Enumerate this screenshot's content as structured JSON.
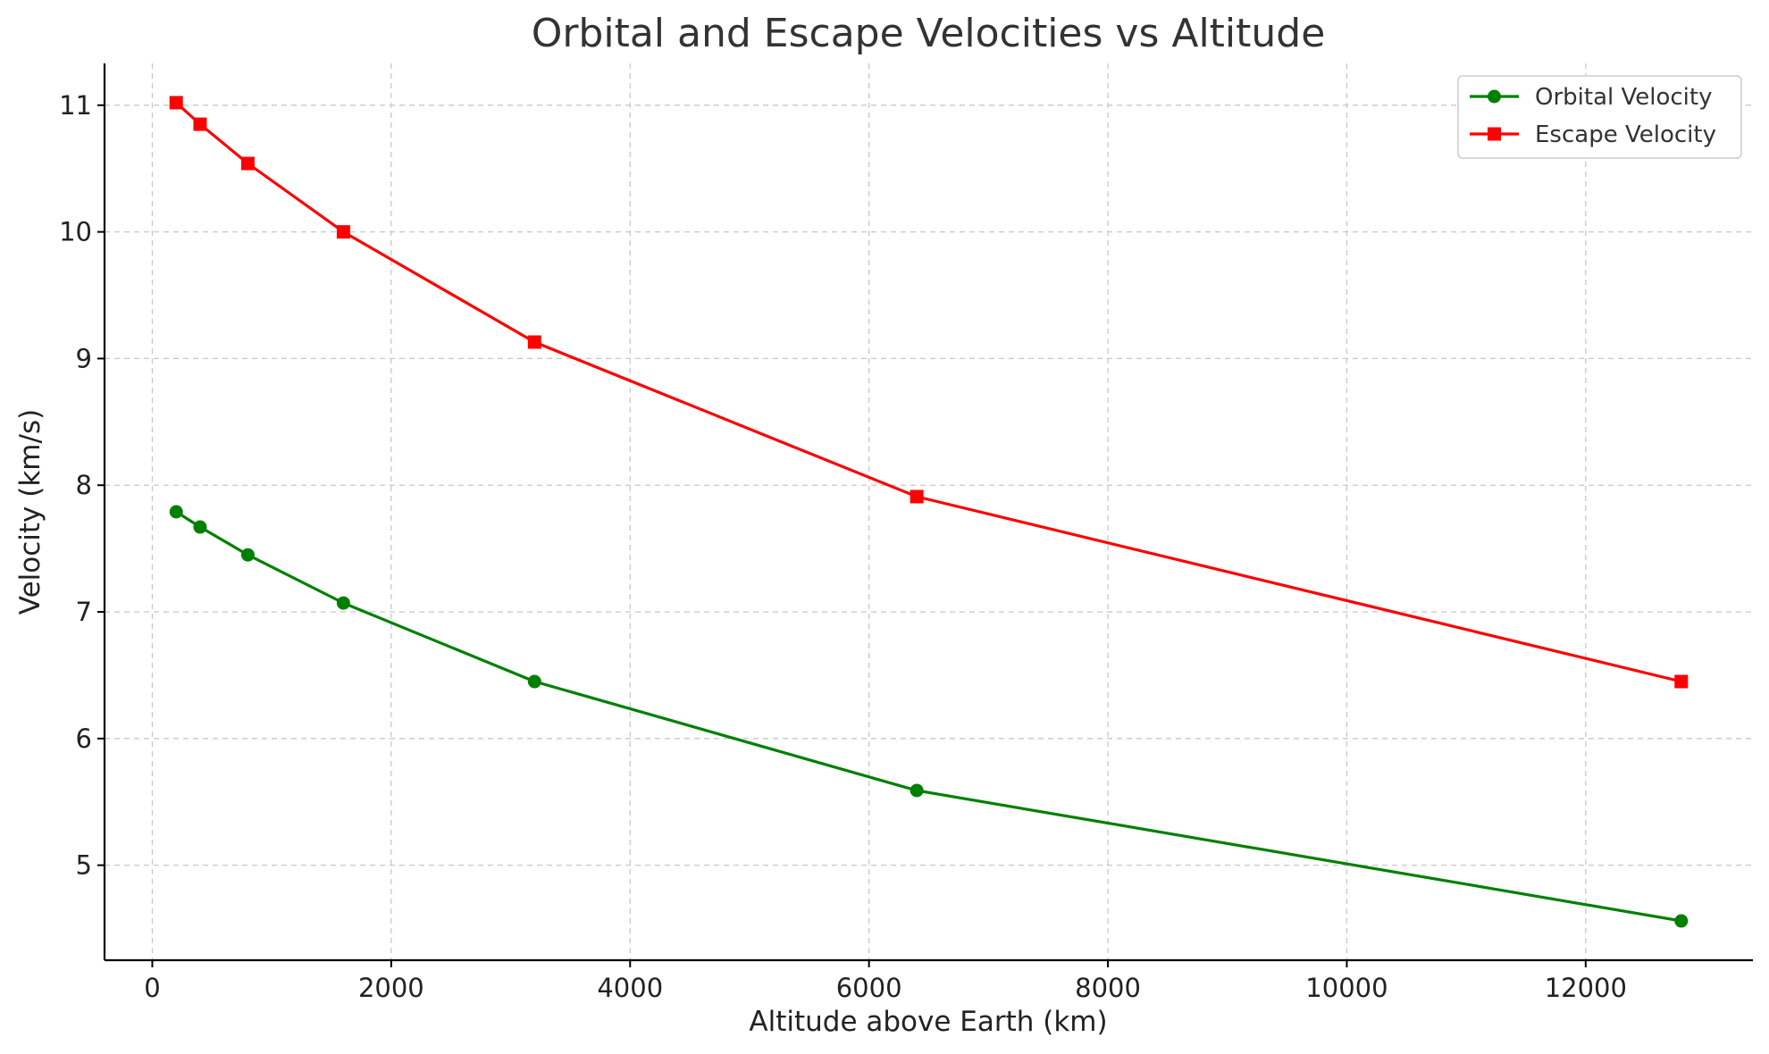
{
  "chart_data": {
    "type": "line",
    "title": "Orbital and Escape Velocities vs Altitude",
    "xlabel": "Altitude above Earth (km)",
    "ylabel": "Velocity (km/s)",
    "xlim": [
      -400,
      13400
    ],
    "ylim": [
      4.25,
      11.33
    ],
    "xticks": [
      0,
      2000,
      4000,
      6000,
      8000,
      10000,
      12000
    ],
    "yticks": [
      5,
      6,
      7,
      8,
      9,
      10,
      11
    ],
    "grid": true,
    "legend_position": "top-right",
    "series": [
      {
        "name": "Orbital Velocity",
        "color": "#008000",
        "marker": "circle",
        "x": [
          200,
          400,
          800,
          1600,
          3200,
          6400,
          12800
        ],
        "y": [
          7.79,
          7.67,
          7.45,
          7.07,
          6.45,
          5.59,
          4.56
        ]
      },
      {
        "name": "Escape Velocity",
        "color": "#ff0000",
        "marker": "square",
        "x": [
          200,
          400,
          800,
          1600,
          3200,
          6400,
          12800
        ],
        "y": [
          11.02,
          10.85,
          10.54,
          10.0,
          9.13,
          7.91,
          6.45
        ]
      }
    ]
  }
}
